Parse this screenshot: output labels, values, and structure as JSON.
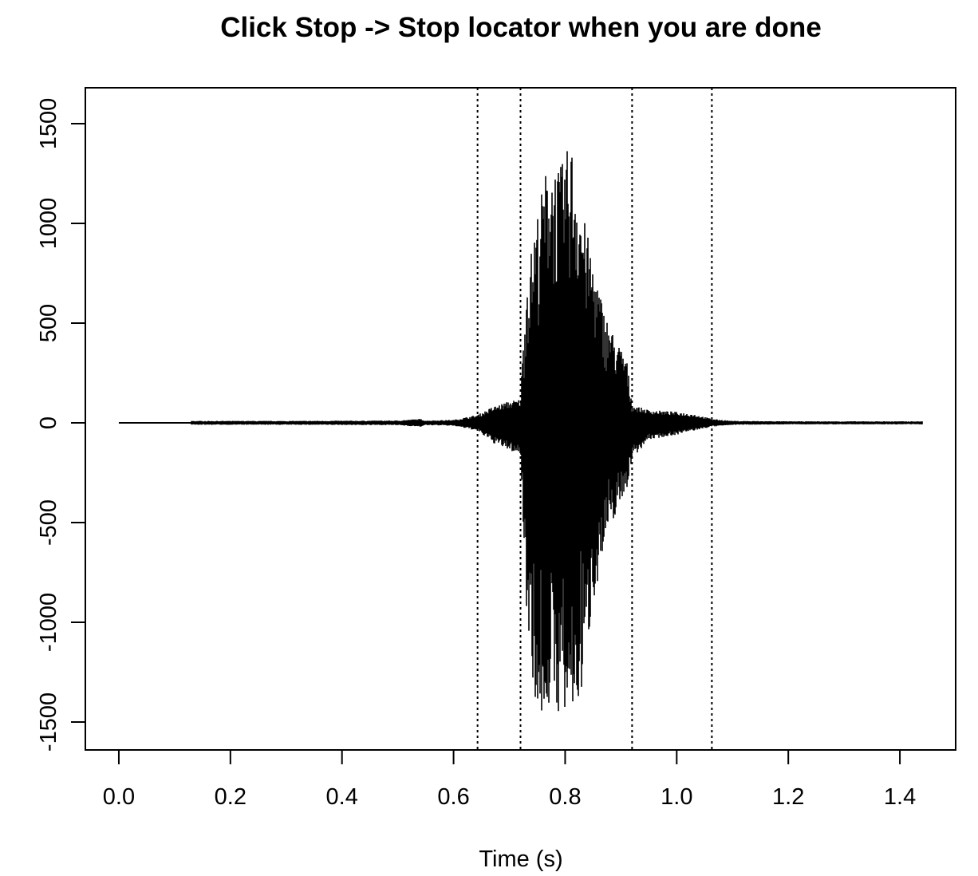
{
  "chart_data": {
    "type": "line",
    "title": "Click Stop -> Stop locator when you are done",
    "xlabel": "Time (s)",
    "ylabel": "",
    "xlim": [
      -0.06,
      1.5
    ],
    "ylim": [
      -1640,
      1680
    ],
    "xticks": [
      0.0,
      0.2,
      0.4,
      0.6,
      0.8,
      1.0,
      1.2,
      1.4
    ],
    "xtick_labels": [
      "0.0",
      "0.2",
      "0.4",
      "0.6",
      "0.8",
      "1.0",
      "1.2",
      "1.4"
    ],
    "yticks": [
      -1500,
      -1000,
      -500,
      0,
      500,
      1000,
      1500
    ],
    "ytick_labels": [
      "-1500",
      "-1000",
      "-500",
      "0",
      "500",
      "1000",
      "1500"
    ],
    "grid": false,
    "legend": "none",
    "colors": {
      "waveform": "#000000",
      "locator": "#000000",
      "axes": "#000000"
    },
    "locator_lines": [
      {
        "x": 0.643
      },
      {
        "x": 0.72
      },
      {
        "x": 0.92
      },
      {
        "x": 1.063
      }
    ],
    "series": [
      {
        "values_note": "waveform amplitude envelope",
        "x": [
          0.0,
          0.128,
          0.13,
          0.3,
          0.5,
          0.54,
          0.55,
          0.6,
          0.643,
          0.67,
          0.7,
          0.72,
          0.73,
          0.75,
          0.77,
          0.79,
          0.81,
          0.83,
          0.85,
          0.87,
          0.89,
          0.91,
          0.92,
          0.95,
          1.0,
          1.03,
          1.063,
          1.1,
          1.2,
          1.3,
          1.44
        ],
        "max": [
          0,
          0,
          10,
          10,
          12,
          20,
          12,
          15,
          40,
          80,
          110,
          120,
          700,
          1050,
          1330,
          1270,
          1420,
          1080,
          810,
          560,
          420,
          330,
          90,
          65,
          55,
          45,
          20,
          10,
          8,
          8,
          8
        ],
        "min": [
          0,
          0,
          -10,
          -10,
          -12,
          -20,
          -12,
          -15,
          -40,
          -100,
          -140,
          -160,
          -900,
          -1530,
          -1430,
          -1460,
          -1530,
          -1360,
          -900,
          -640,
          -460,
          -340,
          -180,
          -85,
          -60,
          -40,
          -20,
          -10,
          -8,
          -8,
          -8
        ]
      }
    ]
  }
}
